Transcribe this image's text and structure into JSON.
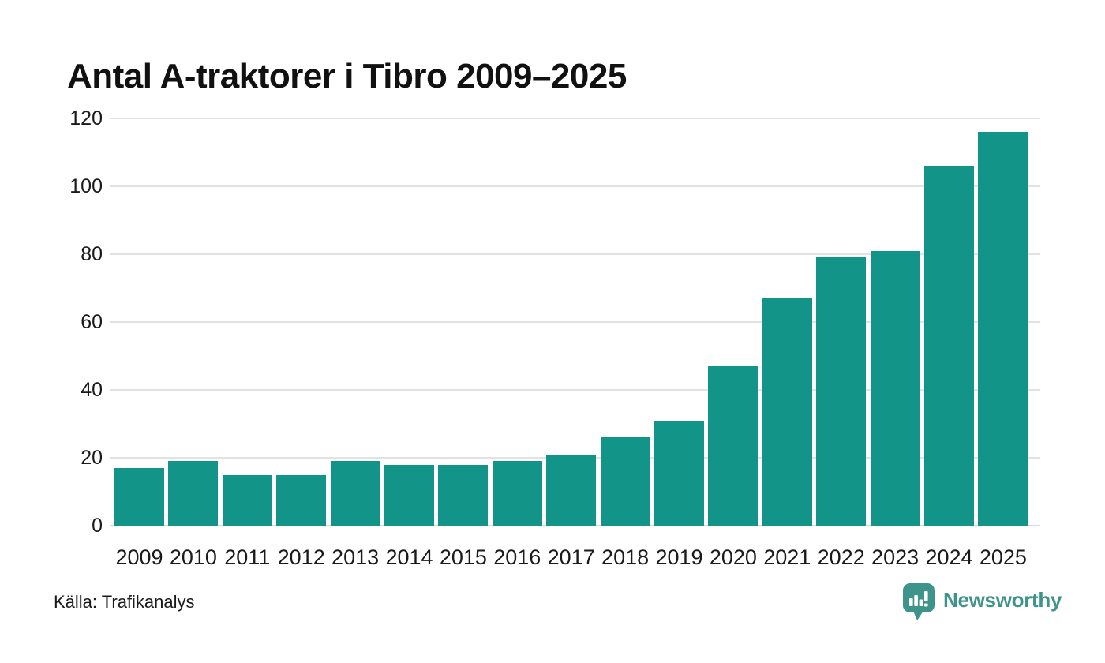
{
  "page": {
    "title": "Antal A-traktorer i Tibro 2009–2025"
  },
  "footer": {
    "source": "Källa: Trafikanalys",
    "brand_name": "Newsworthy"
  },
  "colors": {
    "bar": "#129488",
    "brand": "#3e938b",
    "grid": "#e2e2e2",
    "text": "#1a1a1a"
  },
  "chart_data": {
    "type": "bar",
    "title": "Antal A-traktorer i Tibro 2009–2025",
    "categories": [
      "2009",
      "2010",
      "2011",
      "2012",
      "2013",
      "2014",
      "2015",
      "2016",
      "2017",
      "2018",
      "2019",
      "2020",
      "2021",
      "2022",
      "2023",
      "2024",
      "2025"
    ],
    "values": [
      17,
      19,
      15,
      15,
      19,
      18,
      18,
      19,
      21,
      26,
      31,
      47,
      67,
      79,
      81,
      106,
      116
    ],
    "xlabel": "",
    "ylabel": "",
    "ylim": [
      0,
      120
    ],
    "yticks": [
      0,
      20,
      40,
      60,
      80,
      100,
      120
    ],
    "grid": true,
    "legend": "none",
    "bar_color": "#129488",
    "source": "Källa: Trafikanalys"
  }
}
